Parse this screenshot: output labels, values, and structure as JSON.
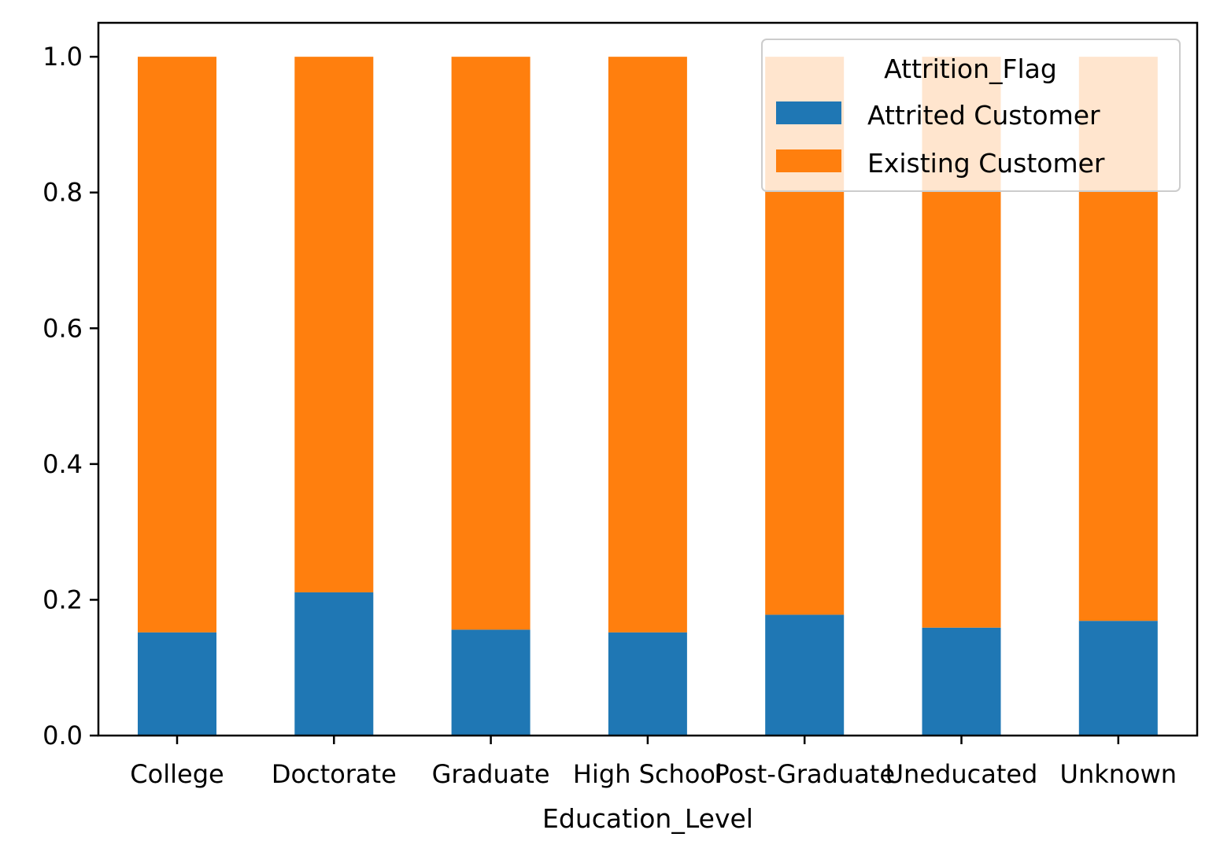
{
  "chart_data": {
    "type": "bar",
    "stacked": true,
    "xlabel": "Education_Level",
    "ylabel": "",
    "ylim": [
      0,
      1.05
    ],
    "yticks": [
      "0.0",
      "0.2",
      "0.4",
      "0.6",
      "0.8",
      "1.0"
    ],
    "categories": [
      "College",
      "Doctorate",
      "Graduate",
      "High School",
      "Post-Graduate",
      "Uneducated",
      "Unknown"
    ],
    "series": [
      {
        "name": "Attrited Customer",
        "color": "#1f77b4",
        "values": [
          0.152,
          0.211,
          0.156,
          0.152,
          0.178,
          0.159,
          0.169
        ]
      },
      {
        "name": "Existing Customer",
        "color": "#ff7f0e",
        "values": [
          0.848,
          0.789,
          0.844,
          0.848,
          0.822,
          0.841,
          0.831
        ]
      }
    ],
    "legend": {
      "title": "Attrition_Flag",
      "position": "top-right"
    },
    "grid": false
  }
}
